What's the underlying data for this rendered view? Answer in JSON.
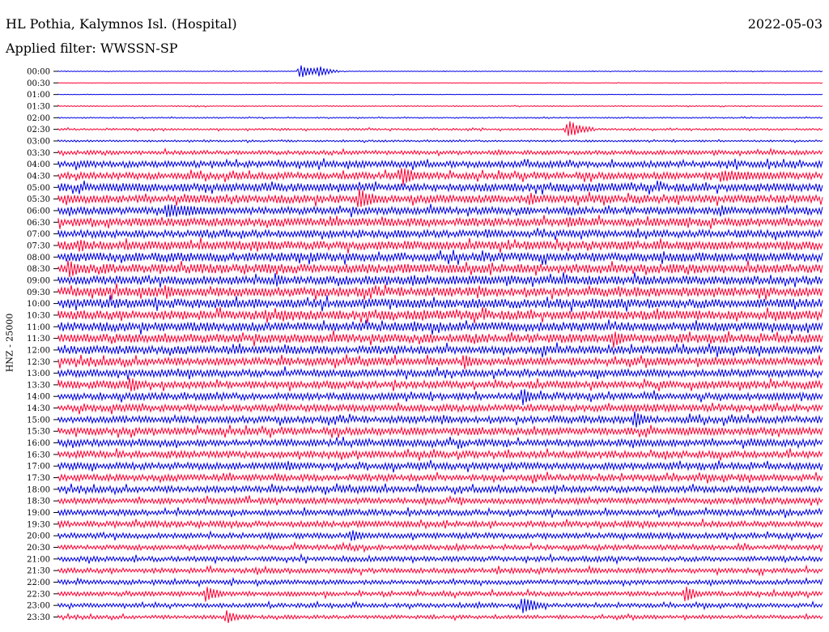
{
  "header": {
    "station": "HL Pothia, Kalymnos Isl. (Hospital)",
    "date": "2022-05-03",
    "filter": "Applied filter: WWSSN-SP"
  },
  "chart_data": {
    "type": "helicorder",
    "ylabel": "HNZ - 25000",
    "line_colors": [
      "#0000e6",
      "#ff0033"
    ],
    "rows": [
      "00:00",
      "00:30",
      "01:00",
      "01:30",
      "02:00",
      "02:30",
      "03:00",
      "03:30",
      "04:00",
      "04:30",
      "05:00",
      "05:30",
      "06:00",
      "06:30",
      "07:00",
      "07:30",
      "08:00",
      "08:30",
      "09:00",
      "09:30",
      "10:00",
      "10:30",
      "11:00",
      "11:30",
      "12:00",
      "12:30",
      "13:00",
      "13:30",
      "14:00",
      "14:30",
      "15:00",
      "15:30",
      "16:00",
      "16:30",
      "17:00",
      "17:30",
      "18:00",
      "18:30",
      "19:00",
      "19:30",
      "20:00",
      "20:30",
      "21:00",
      "21:30",
      "22:00",
      "22:30",
      "23:00",
      "23:30"
    ],
    "noise_level": [
      0.3,
      0.2,
      0.2,
      0.4,
      0.5,
      0.8,
      0.8,
      1.8,
      2.8,
      3.0,
      3.5,
      3.5,
      3.2,
      3.6,
      3.2,
      3.8,
      3.8,
      4.0,
      3.8,
      4.0,
      4.0,
      4.0,
      3.8,
      3.8,
      3.6,
      3.4,
      3.2,
      3.2,
      3.0,
      3.0,
      3.0,
      3.2,
      3.0,
      3.0,
      3.0,
      2.8,
      2.8,
      2.6,
      2.6,
      2.6,
      2.4,
      2.2,
      2.2,
      2.2,
      2.0,
      2.0,
      1.8,
      1.6
    ],
    "events": [
      {
        "row": "00:00",
        "minute": 9.5,
        "amplitude": 9,
        "duration": 1.0
      },
      {
        "row": "00:00",
        "minute": 10.2,
        "amplitude": 8,
        "duration": 0.8
      },
      {
        "row": "02:30",
        "minute": 20.0,
        "amplitude": 12,
        "duration": 1.0
      },
      {
        "row": "04:30",
        "minute": 13.5,
        "amplitude": 13,
        "duration": 1.0
      },
      {
        "row": "04:30",
        "minute": 26.0,
        "amplitude": 8,
        "duration": 4.0
      },
      {
        "row": "05:30",
        "minute": 11.8,
        "amplitude": 14,
        "duration": 1.2
      },
      {
        "row": "05:30",
        "minute": 18.5,
        "amplitude": 9,
        "duration": 0.8
      },
      {
        "row": "06:00",
        "minute": 0.9,
        "amplitude": 6,
        "duration": 0.4
      },
      {
        "row": "06:00",
        "minute": 4.2,
        "amplitude": 9,
        "duration": 4.0
      },
      {
        "row": "06:00",
        "minute": 26.0,
        "amplitude": 8,
        "duration": 0.8
      },
      {
        "row": "06:30",
        "minute": 20.0,
        "amplitude": 8,
        "duration": 0.8
      },
      {
        "row": "07:00",
        "minute": 16.8,
        "amplitude": 7,
        "duration": 0.8
      },
      {
        "row": "07:30",
        "minute": 0.8,
        "amplitude": 10,
        "duration": 0.8
      },
      {
        "row": "07:30",
        "minute": 7.8,
        "amplitude": 8,
        "duration": 0.6
      },
      {
        "row": "08:30",
        "minute": 0.4,
        "amplitude": 12,
        "duration": 1.0
      },
      {
        "row": "09:00",
        "minute": 8.5,
        "amplitude": 10,
        "duration": 0.8
      },
      {
        "row": "09:00",
        "minute": 13.9,
        "amplitude": 8,
        "duration": 0.8
      },
      {
        "row": "09:30",
        "minute": 4.2,
        "amplitude": 10,
        "duration": 0.8
      },
      {
        "row": "10:00",
        "minute": 21.0,
        "amplitude": 8,
        "duration": 0.8
      },
      {
        "row": "10:30",
        "minute": 8.8,
        "amplitude": 9,
        "duration": 0.8
      },
      {
        "row": "11:00",
        "minute": 13.9,
        "amplitude": 8,
        "duration": 0.8
      },
      {
        "row": "11:30",
        "minute": 21.8,
        "amplitude": 12,
        "duration": 0.8
      },
      {
        "row": "12:30",
        "minute": 15.9,
        "amplitude": 11,
        "duration": 0.8
      },
      {
        "row": "13:30",
        "minute": 2.8,
        "amplitude": 11,
        "duration": 0.8
      },
      {
        "row": "14:00",
        "minute": 18.2,
        "amplitude": 12,
        "duration": 0.8
      },
      {
        "row": "15:00",
        "minute": 22.6,
        "amplitude": 12,
        "duration": 0.8
      },
      {
        "row": "17:00",
        "minute": 9.0,
        "amplitude": 8,
        "duration": 0.6
      },
      {
        "row": "20:00",
        "minute": 11.5,
        "amplitude": 9,
        "duration": 0.8
      },
      {
        "row": "22:30",
        "minute": 5.8,
        "amplitude": 12,
        "duration": 0.8
      },
      {
        "row": "22:30",
        "minute": 24.6,
        "amplitude": 11,
        "duration": 0.8
      },
      {
        "row": "23:00",
        "minute": 18.2,
        "amplitude": 13,
        "duration": 1.0
      },
      {
        "row": "23:30",
        "minute": 6.6,
        "amplitude": 9,
        "duration": 0.8
      }
    ]
  }
}
